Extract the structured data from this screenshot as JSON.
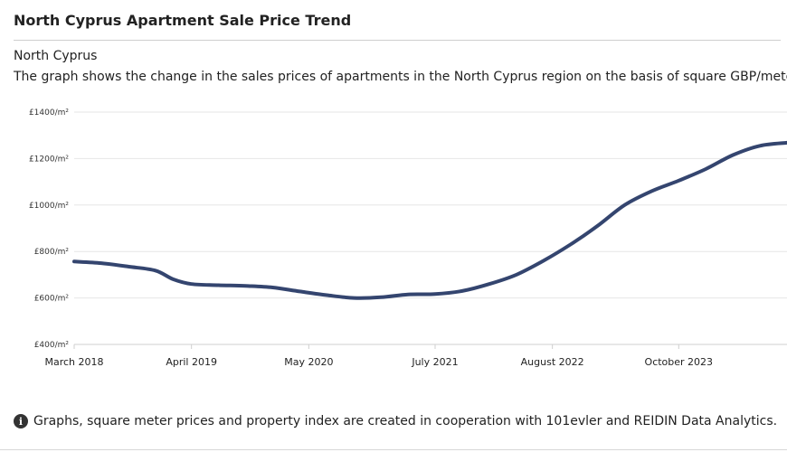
{
  "page_title": "North Cyprus Apartment Sale Price Trend",
  "region_name": "North Cyprus",
  "description": "The graph shows the change in the sales prices of apartments in the North Cyprus region on the basis of square GBP/meters.",
  "footnote": "Graphs, square meter prices and property index are created in cooperation with 101evler and REIDIN Data Analytics.",
  "icons": {
    "info": "info-icon",
    "menu": "kebab-menu-icon"
  },
  "colors": {
    "line": "#34456f",
    "grid": "#e6e6e6"
  },
  "chart_data": {
    "type": "line",
    "title": "",
    "xlabel": "",
    "ylabel": "",
    "ylim": [
      400,
      1400
    ],
    "yticks": [
      400,
      600,
      800,
      1000,
      1200,
      1400
    ],
    "ytick_labels": [
      "£400/m²",
      "£600/m²",
      "£800/m²",
      "£1000/m²",
      "£1200/m²",
      "£1400/m²"
    ],
    "xlim": [
      "2018-03",
      "2024-10"
    ],
    "xticks": [
      "2018-03",
      "2019-04",
      "2020-05",
      "2021-07",
      "2022-08",
      "2023-10"
    ],
    "xtick_labels": [
      "March 2018",
      "April 2019",
      "May 2020",
      "July 2021",
      "August 2022",
      "October 2023"
    ],
    "grid": true,
    "legend": "none",
    "series": [
      {
        "x": [
          "2018-03",
          "2018-06",
          "2018-09",
          "2018-12",
          "2019-02",
          "2019-04",
          "2019-07",
          "2019-10",
          "2020-01",
          "2020-04",
          "2020-07",
          "2020-10",
          "2021-01",
          "2021-04",
          "2021-07",
          "2021-10",
          "2022-01",
          "2022-04",
          "2022-07",
          "2022-10",
          "2023-01",
          "2023-04",
          "2023-07",
          "2023-10",
          "2024-01",
          "2024-04",
          "2024-07",
          "2024-10"
        ],
        "values": [
          757,
          750,
          735,
          718,
          680,
          660,
          655,
          652,
          645,
          628,
          612,
          600,
          603,
          615,
          617,
          630,
          660,
          700,
          760,
          830,
          910,
          1000,
          1060,
          1105,
          1155,
          1215,
          1255,
          1268
        ]
      }
    ]
  }
}
